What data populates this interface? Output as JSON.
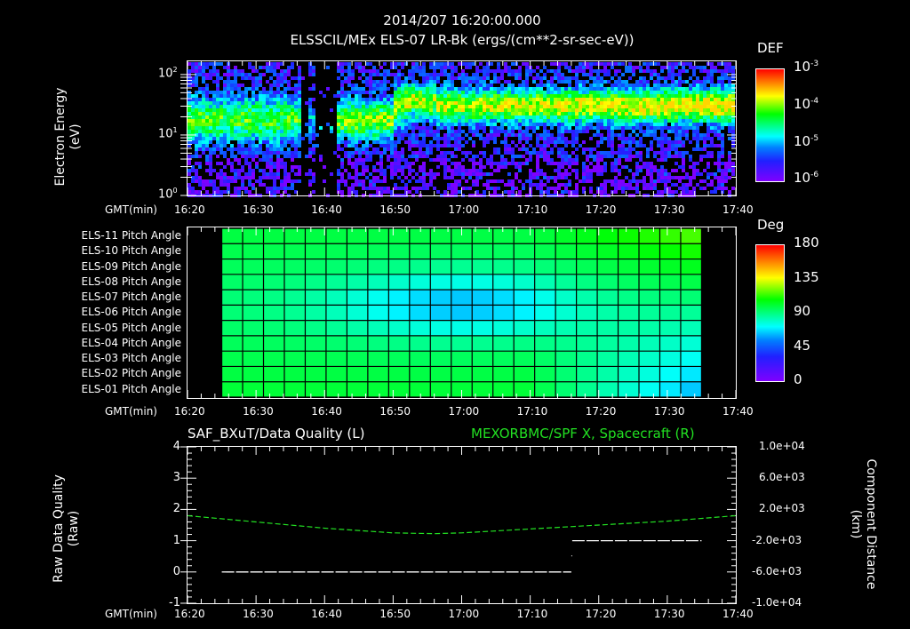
{
  "header": {
    "datetime": "2014/207 16:20:00.000",
    "title": "ELSSCIL/MEx ELS-07 LR-Bk  (ergs/(cm**2-sr-sec-eV))"
  },
  "time_axis": {
    "label": "GMT(min)",
    "ticks": [
      "16:20",
      "16:30",
      "16:40",
      "16:50",
      "17:00",
      "17:10",
      "17:20",
      "17:30",
      "17:40"
    ]
  },
  "panel1": {
    "ylabel_line1": "Electron Energy",
    "ylabel_line2": "(eV)",
    "yticks": [
      {
        "base": "10",
        "exp": "2"
      },
      {
        "base": "10",
        "exp": "1"
      },
      {
        "base": "10",
        "exp": "0"
      }
    ],
    "colorbar": {
      "title": "DEF",
      "ticks": [
        {
          "base": "10",
          "exp": "-3"
        },
        {
          "base": "10",
          "exp": "-4"
        },
        {
          "base": "10",
          "exp": "-5"
        },
        {
          "base": "10",
          "exp": "-6"
        }
      ]
    }
  },
  "panel2": {
    "row_labels": [
      "ELS-11 Pitch Angle",
      "ELS-10 Pitch Angle",
      "ELS-09 Pitch Angle",
      "ELS-08 Pitch Angle",
      "ELS-07 Pitch Angle",
      "ELS-06 Pitch Angle",
      "ELS-05 Pitch Angle",
      "ELS-04 Pitch Angle",
      "ELS-03 Pitch Angle",
      "ELS-02 Pitch Angle",
      "ELS-01 Pitch Angle"
    ],
    "colorbar": {
      "title": "Deg",
      "ticks": [
        "180",
        "135",
        "90",
        "45",
        "0"
      ]
    }
  },
  "panel3": {
    "left_title": "SAF_BXuT/Data Quality (L)",
    "right_title": "MEXORBMC/SPF X, Spacecraft (R)",
    "ylabel_left_line1": "Raw Data Quality",
    "ylabel_left_line2": "(Raw)",
    "ylabel_right_line1": "Component Distance",
    "ylabel_right_line2": "(km)",
    "yticks_left": [
      "4",
      "3",
      "2",
      "1",
      "0",
      "-1"
    ],
    "yticks_right": [
      "1.0e+04",
      "6.0e+03",
      "2.0e+03",
      "-2.0e+03",
      "-6.0e+03",
      "-1.0e+04"
    ],
    "series_color": "#22e022"
  },
  "chart_data": [
    {
      "type": "heatmap",
      "title": "ELSSCIL/MEx ELS-07 LR-Bk (ergs/(cm**2-sr-sec-eV))",
      "subtitle": "2014/207 16:20:00.000",
      "xlabel": "GMT(min)",
      "ylabel": "Electron Energy (eV)",
      "x_ticks": [
        "16:20",
        "16:30",
        "16:40",
        "16:50",
        "17:00",
        "17:10",
        "17:20",
        "17:30",
        "17:40"
      ],
      "y_scale": "log",
      "ylim": [
        1,
        150
      ],
      "colorbar_label": "DEF",
      "colorbar_range": [
        1e-06,
        0.001
      ],
      "notes": "Peak band ~10-30 eV before 16:47, data gap ~16:47-16:52, energy shift up to ~30-50 eV after ~17:03 with increasing flux to ~1e-4"
    },
    {
      "type": "heatmap",
      "title": "ELS Pitch Angle",
      "xlabel": "GMT(min)",
      "categories": [
        "ELS-01",
        "ELS-02",
        "ELS-03",
        "ELS-04",
        "ELS-05",
        "ELS-06",
        "ELS-07",
        "ELS-08",
        "ELS-09",
        "ELS-10",
        "ELS-11"
      ],
      "x_ticks": [
        "16:20",
        "16:30",
        "16:40",
        "16:50",
        "17:00",
        "17:10",
        "17:20",
        "17:30",
        "17:40"
      ],
      "data_range_time": [
        "16:25",
        "17:35"
      ],
      "colorbar_label": "Deg",
      "colorbar_range": [
        0,
        180
      ],
      "notes": "Values ~70-100 deg early; central anodes ~55-65 deg around 16:50-17:00; upper anodes ~120 deg and lower anodes ~40 deg near 17:25-17:35"
    },
    {
      "type": "line",
      "xlabel": "GMT(min)",
      "x_ticks": [
        "16:20",
        "16:30",
        "16:40",
        "16:50",
        "17:00",
        "17:10",
        "17:20",
        "17:30",
        "17:40"
      ],
      "series": [
        {
          "name": "SAF_BXuT/Data Quality (L)",
          "axis": "left",
          "color": "#ffffff",
          "x": [
            "16:25",
            "17:16",
            "17:16",
            "17:35"
          ],
          "values": [
            0,
            0,
            1,
            1
          ]
        },
        {
          "name": "MEXORBMC/SPF X, Spacecraft (R)",
          "axis": "right",
          "color": "#22e022",
          "x": [
            "16:20",
            "16:30",
            "16:40",
            "16:50",
            "16:56",
            "17:00",
            "17:10",
            "17:20",
            "17:30",
            "17:40"
          ],
          "values": [
            1200,
            400,
            -400,
            -1000,
            -1100,
            -1000,
            -500,
            0,
            500,
            1200
          ]
        }
      ],
      "ylim_left": [
        -1,
        4
      ],
      "ylim_right": [
        -10000,
        10000
      ],
      "ylabel_left": "Raw Data Quality (Raw)",
      "ylabel_right": "Component Distance (km)"
    }
  ]
}
